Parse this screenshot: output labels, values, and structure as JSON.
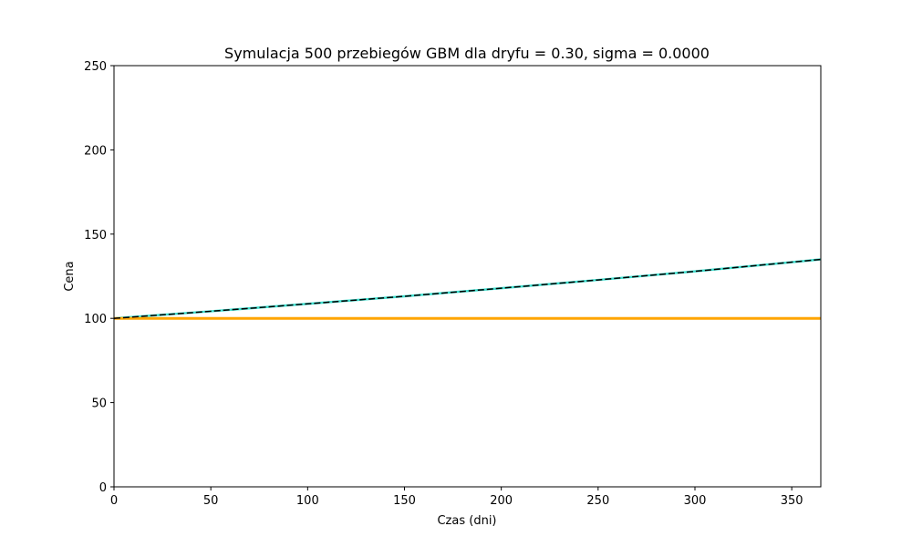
{
  "chart_data": {
    "type": "line",
    "title": "Symulacja 500 przebiegów GBM dla dryfu = 0.30, sigma = 0.0000",
    "xlabel": "Czas (dni)",
    "ylabel": "Cena",
    "xlim": [
      0,
      365
    ],
    "ylim": [
      0,
      250
    ],
    "xticks": [
      0,
      50,
      100,
      150,
      200,
      250,
      300,
      350
    ],
    "yticks": [
      0,
      50,
      100,
      150,
      200,
      250
    ],
    "grid": false,
    "series": [
      {
        "style": "simulated paths (all identical, sigma = 0)",
        "color": "#40e0d0",
        "x": [
          0,
          50,
          100,
          150,
          200,
          250,
          300,
          365
        ],
        "y": [
          100,
          104.2,
          108.6,
          113.1,
          117.9,
          122.8,
          127.9,
          135
        ]
      },
      {
        "style": "dashed black",
        "color": "#000000",
        "x": [
          0,
          50,
          100,
          150,
          200,
          250,
          300,
          365
        ],
        "y": [
          100,
          104.2,
          108.6,
          113.1,
          117.9,
          122.8,
          127.9,
          135
        ]
      },
      {
        "style": "solid orange",
        "color": "#ffa500",
        "x": [
          0,
          365
        ],
        "y": [
          100,
          100
        ]
      }
    ]
  }
}
